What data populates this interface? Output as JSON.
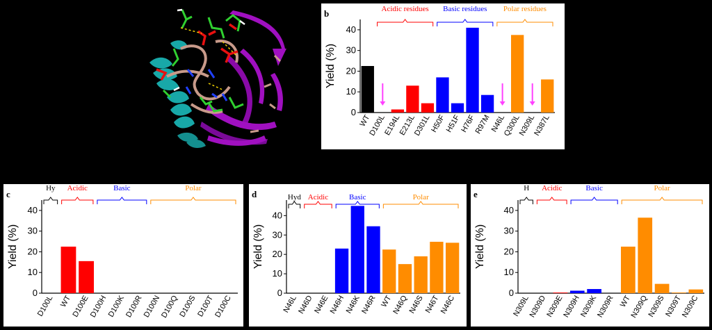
{
  "structure_panel": {
    "colors": {
      "helix": "#18a8a8",
      "sheet": "#a010c0",
      "coil": "#c89a8a",
      "acidic_sticks": "#e81010",
      "sticks": "#30d030"
    }
  },
  "chart_data": [
    {
      "id": "b",
      "panel_label": "b",
      "type": "bar",
      "ylabel": "Yield (%)",
      "ylim": [
        0,
        45
      ],
      "yticks": [
        0,
        10,
        20,
        30,
        40
      ],
      "categories": [
        "WT",
        "D100L",
        "E194L",
        "E213L",
        "D301L",
        "H50F",
        "H51F",
        "H76F",
        "R97M",
        "N46L",
        "Q300L",
        "N309L",
        "N387L"
      ],
      "values": [
        22.5,
        0,
        1.5,
        13,
        4.5,
        17,
        4.5,
        41,
        8.5,
        0,
        37.5,
        0,
        16
      ],
      "colors": [
        "#000000",
        "#000000",
        "#ff0000",
        "#ff0000",
        "#ff0000",
        "#0000ff",
        "#0000ff",
        "#0000ff",
        "#0000ff",
        "#ff8c00",
        "#ff8c00",
        "#ff8c00",
        "#ff8c00"
      ],
      "arrows_at": [
        1,
        9,
        11
      ],
      "groups": [
        {
          "label": "Acidic residues",
          "color": "#ff0000",
          "from": 1,
          "to": 4
        },
        {
          "label": "Basic residues",
          "color": "#0000ff",
          "from": 5,
          "to": 8
        },
        {
          "label": "Polar residues",
          "color": "#ff8c00",
          "from": 9,
          "to": 12
        }
      ]
    },
    {
      "id": "c",
      "panel_label": "c",
      "type": "bar",
      "ylabel": "Yield (%)",
      "ylim": [
        0,
        45
      ],
      "yticks": [
        0,
        10,
        20,
        30,
        40
      ],
      "categories": [
        "D100L",
        "WT",
        "D100E",
        "D100H",
        "D100K",
        "D100R",
        "D100N",
        "D100Q",
        "D100S",
        "D100T",
        "D100C"
      ],
      "values": [
        0,
        22.5,
        15.5,
        0,
        0,
        0,
        0,
        0,
        0,
        0,
        0
      ],
      "colors": [
        "#000000",
        "#ff0000",
        "#ff0000",
        "#0000ff",
        "#0000ff",
        "#0000ff",
        "#ff8c00",
        "#ff8c00",
        "#ff8c00",
        "#ff8c00",
        "#ff8c00"
      ],
      "groups": [
        {
          "label": "Hy",
          "color": "#000000",
          "from": 0,
          "to": 0
        },
        {
          "label": "Acidic",
          "color": "#ff0000",
          "from": 1,
          "to": 2
        },
        {
          "label": "Basic",
          "color": "#0000ff",
          "from": 3,
          "to": 5
        },
        {
          "label": "Polar",
          "color": "#ff8c00",
          "from": 6,
          "to": 10
        }
      ]
    },
    {
      "id": "d",
      "panel_label": "d",
      "type": "bar",
      "ylabel": "Yield (%)",
      "ylim": [
        0,
        48
      ],
      "yticks": [
        0,
        10,
        20,
        30,
        40
      ],
      "categories": [
        "N46L",
        "N46D",
        "N46E",
        "N46H",
        "N46K",
        "N46R",
        "WT",
        "N46Q",
        "N46S",
        "N46T",
        "N46C"
      ],
      "values": [
        0,
        0,
        0,
        23,
        45,
        34.5,
        22.5,
        15,
        19,
        26.5,
        26
      ],
      "colors": [
        "#000000",
        "#ff0000",
        "#ff0000",
        "#0000ff",
        "#0000ff",
        "#0000ff",
        "#ff8c00",
        "#ff8c00",
        "#ff8c00",
        "#ff8c00",
        "#ff8c00"
      ],
      "groups": [
        {
          "label": "Hyd",
          "color": "#000000",
          "from": 0,
          "to": 0
        },
        {
          "label": "Acidic",
          "color": "#ff0000",
          "from": 1,
          "to": 2
        },
        {
          "label": "Basic",
          "color": "#0000ff",
          "from": 3,
          "to": 5
        },
        {
          "label": "Polar",
          "color": "#ff8c00",
          "from": 6,
          "to": 10
        }
      ]
    },
    {
      "id": "e",
      "panel_label": "e",
      "type": "bar",
      "ylabel": "Yield (%)",
      "ylim": [
        0,
        45
      ],
      "yticks": [
        0,
        10,
        20,
        30,
        40
      ],
      "categories": [
        "N309L",
        "N309D",
        "N309E",
        "N309H",
        "N309K",
        "N309R",
        "WT",
        "N309Q",
        "N309S",
        "N309T",
        "N309C"
      ],
      "values": [
        0,
        0,
        0.3,
        1.2,
        2,
        0,
        22.5,
        36.5,
        4.5,
        0.3,
        1.8
      ],
      "colors": [
        "#000000",
        "#ff0000",
        "#ff0000",
        "#0000ff",
        "#0000ff",
        "#0000ff",
        "#ff8c00",
        "#ff8c00",
        "#ff8c00",
        "#ff8c00",
        "#ff8c00"
      ],
      "groups": [
        {
          "label": "H",
          "color": "#000000",
          "from": 0,
          "to": 0
        },
        {
          "label": "Acidic",
          "color": "#ff0000",
          "from": 1,
          "to": 2
        },
        {
          "label": "Basic",
          "color": "#0000ff",
          "from": 3,
          "to": 5
        },
        {
          "label": "Polar",
          "color": "#ff8c00",
          "from": 6,
          "to": 10
        }
      ]
    }
  ]
}
